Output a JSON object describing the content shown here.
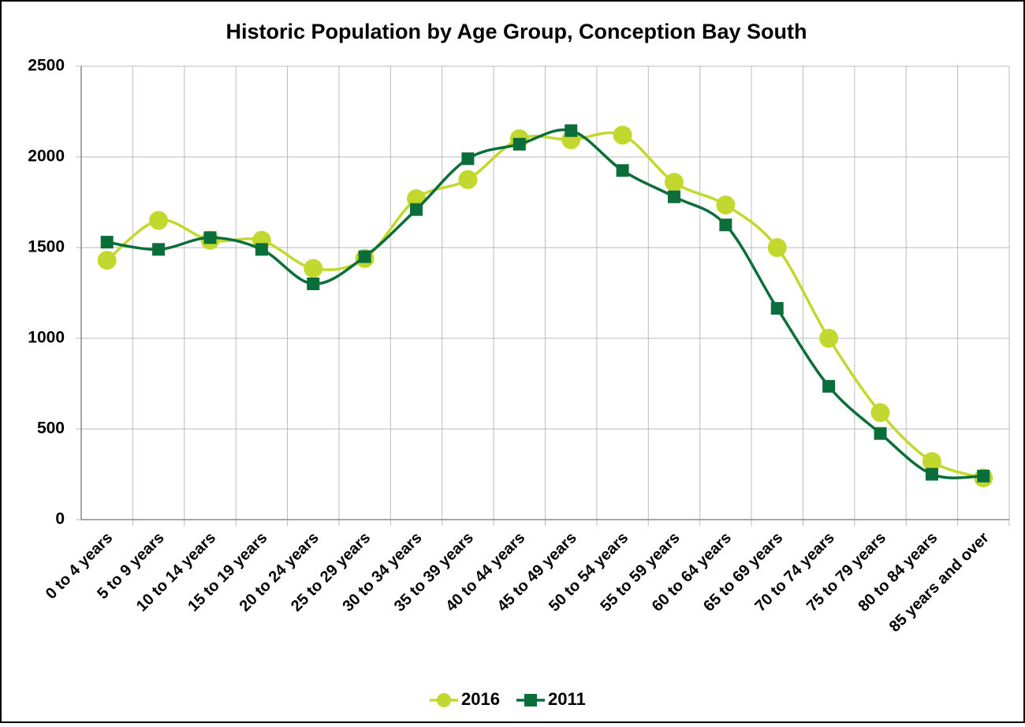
{
  "chart_data": {
    "type": "line",
    "title": "Historic Population by Age Group, Conception Bay South",
    "categories": [
      "0 to 4 years",
      "5 to 9 years",
      "10 to 14 years",
      "15 to 19 years",
      "20 to 24 years",
      "25 to 29 years",
      "30 to 34 years",
      "35 to 39 years",
      "40 to 44 years",
      "45 to 49 years",
      "50 to 54 years",
      "55 to 59 years",
      "60 to 64 years",
      "65 to 69 years",
      "70 to 74 years",
      "75 to 79 years",
      "80 to 84 years",
      "85 years and over"
    ],
    "series": [
      {
        "name": "2016",
        "color": "#c3d82e",
        "marker": "circle",
        "values": [
          1430,
          1650,
          1540,
          1540,
          1385,
          1440,
          1770,
          1875,
          2100,
          2095,
          2120,
          1860,
          1735,
          1500,
          1000,
          590,
          320,
          230
        ]
      },
      {
        "name": "2011",
        "color": "#0a6e3a",
        "marker": "square",
        "values": [
          1530,
          1490,
          1555,
          1490,
          1300,
          1450,
          1710,
          1990,
          2070,
          2145,
          1925,
          1780,
          1625,
          1165,
          735,
          475,
          250,
          240
        ]
      }
    ],
    "ylim": [
      0,
      2500
    ],
    "yticks": [
      0,
      500,
      1000,
      1500,
      2000,
      2500
    ],
    "grid": true,
    "smooth": true,
    "legend": "bottom"
  }
}
